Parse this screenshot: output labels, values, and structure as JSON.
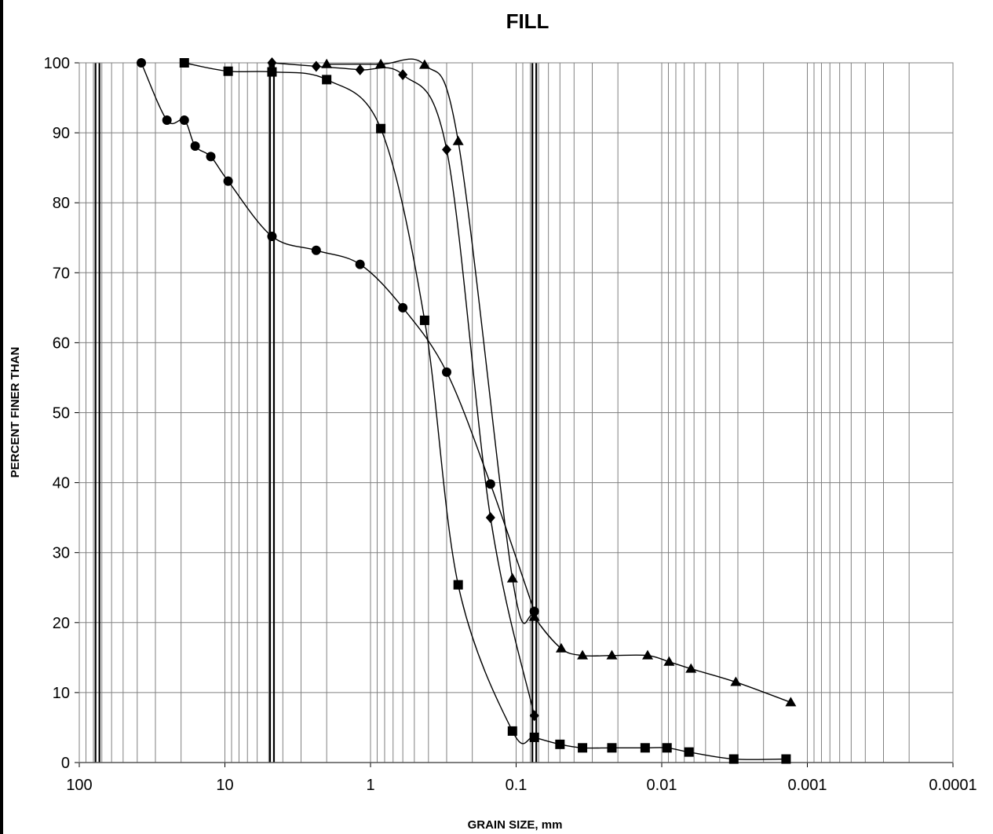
{
  "chart_data": {
    "type": "scatter",
    "title": "FILL",
    "xlabel": "GRAIN SIZE, mm",
    "ylabel": "PERCENT FINER THAN",
    "xscale": "log",
    "xaxis_reversed": true,
    "xlim": [
      100,
      0.0001
    ],
    "ylim": [
      0,
      100
    ],
    "x_ticks": [
      "100",
      "10",
      "1",
      "0.1",
      "0.01",
      "0.001",
      "0.0001"
    ],
    "x_tick_values": [
      100,
      10,
      1,
      0.1,
      0.01,
      0.001,
      0.0001
    ],
    "y_ticks": [
      "0",
      "10",
      "20",
      "30",
      "40",
      "50",
      "60",
      "70",
      "80",
      "90",
      "100"
    ],
    "y_tick_values": [
      0,
      10,
      20,
      30,
      40,
      50,
      60,
      70,
      80,
      90,
      100
    ],
    "grid": true,
    "reference_lines_x": [
      75,
      4.75,
      0.075
    ],
    "series": [
      {
        "marker": "circle",
        "color": "#000000",
        "points": [
          [
            37.5,
            100
          ],
          [
            25,
            91.8
          ],
          [
            19,
            91.8
          ],
          [
            16,
            88.1
          ],
          [
            12.5,
            86.6
          ],
          [
            9.5,
            83.1
          ],
          [
            4.75,
            75.2
          ],
          [
            2.36,
            73.2
          ],
          [
            1.18,
            71.2
          ],
          [
            0.6,
            65
          ],
          [
            0.3,
            55.8
          ],
          [
            0.15,
            39.8
          ],
          [
            0.075,
            21.6
          ]
        ]
      },
      {
        "marker": "square",
        "color": "#000000",
        "points": [
          [
            19,
            100
          ],
          [
            9.5,
            98.8
          ],
          [
            4.75,
            98.7
          ],
          [
            2,
            97.6
          ],
          [
            0.85,
            90.6
          ],
          [
            0.425,
            63.2
          ],
          [
            0.25,
            25.4
          ],
          [
            0.106,
            4.5
          ],
          [
            0.075,
            3.6
          ],
          [
            0.05,
            2.6
          ],
          [
            0.035,
            2.1
          ],
          [
            0.022,
            2.1
          ],
          [
            0.013,
            2.1
          ],
          [
            0.0092,
            2.1
          ],
          [
            0.0065,
            1.5
          ],
          [
            0.0032,
            0.5
          ],
          [
            0.0014,
            0.5
          ]
        ]
      },
      {
        "marker": "diamond",
        "color": "#000000",
        "points": [
          [
            4.75,
            100
          ],
          [
            2.36,
            99.5
          ],
          [
            1.18,
            99
          ],
          [
            0.6,
            98.3
          ],
          [
            0.3,
            87.6
          ],
          [
            0.15,
            35
          ],
          [
            0.075,
            6.7
          ]
        ]
      },
      {
        "marker": "triangle",
        "color": "#000000",
        "points": [
          [
            2,
            99.8
          ],
          [
            0.85,
            99.8
          ],
          [
            0.425,
            99.7
          ],
          [
            0.25,
            88.8
          ],
          [
            0.106,
            26.3
          ],
          [
            0.075,
            20.8
          ],
          [
            0.049,
            16.3
          ],
          [
            0.035,
            15.3
          ],
          [
            0.022,
            15.3
          ],
          [
            0.0125,
            15.3
          ],
          [
            0.0089,
            14.4
          ],
          [
            0.0063,
            13.4
          ],
          [
            0.0031,
            11.5
          ],
          [
            0.0013,
            8.6
          ]
        ]
      }
    ]
  }
}
